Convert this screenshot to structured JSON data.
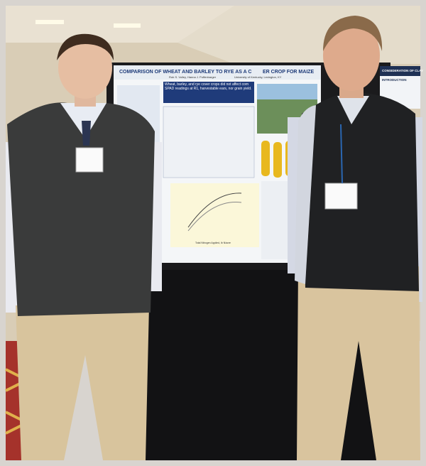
{
  "poster": {
    "title_left": "COMPARISON OF WHEAT AND BARLEY TO RYE AS A C",
    "title_right": "ER CROP FOR MAIZE",
    "authors": "Rob S. Volley, Hanna J. Poffenbarger",
    "affiliation": "University of Kentucky, Lexington, KY",
    "highlight": "Wheat, barley, and rye cover crops did not affect corn SPAD readings at R1, harvestable ears, nor grain yield.",
    "chart_x_label": "Total Nitrogen Applied, lb N/acre"
  },
  "neighbor_poster": {
    "title": "CONSIDERATION OF CLAY",
    "section": "INTRODUCTION"
  }
}
